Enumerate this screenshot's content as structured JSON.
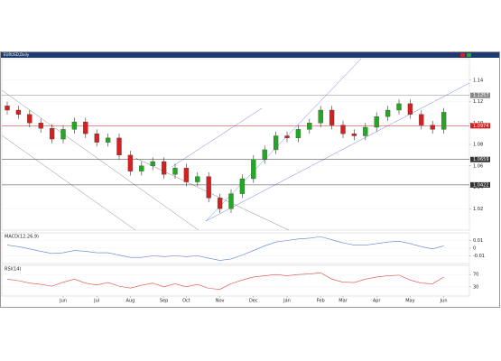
{
  "chart_data": {
    "type": "candlestick",
    "symbol": "EURUSD,Daily",
    "categories": [
      null,
      null,
      null,
      null,
      null,
      "Jun",
      null,
      null,
      "Jul",
      null,
      null,
      "Aug",
      null,
      null,
      "Sep",
      null,
      "Oct",
      null,
      null,
      "Nov",
      null,
      null,
      "Dec",
      null,
      null,
      "Jan",
      null,
      null,
      "Feb",
      null,
      "Mar",
      null,
      null,
      "Apr",
      null,
      null,
      "May",
      null,
      null,
      "Jun"
    ],
    "open": [
      1.116,
      1.112,
      1.108,
      1.1,
      1.095,
      1.085,
      1.094,
      1.101,
      1.09,
      1.082,
      1.086,
      1.07,
      1.055,
      1.06,
      1.064,
      1.052,
      1.058,
      1.045,
      1.05,
      1.03,
      1.02,
      1.034,
      1.048,
      1.066,
      1.075,
      1.088,
      1.086,
      1.094,
      1.1,
      1.112,
      1.098,
      1.09,
      1.088,
      1.096,
      1.106,
      1.112,
      1.118,
      1.108,
      1.098,
      1.094
    ],
    "high": [
      1.12,
      1.116,
      1.112,
      1.104,
      1.099,
      1.098,
      1.105,
      1.105,
      1.094,
      1.09,
      1.09,
      1.074,
      1.064,
      1.068,
      1.068,
      1.062,
      1.062,
      1.054,
      1.054,
      1.034,
      1.038,
      1.052,
      1.07,
      1.079,
      1.092,
      1.092,
      1.098,
      1.104,
      1.116,
      1.116,
      1.102,
      1.094,
      1.1,
      1.11,
      1.116,
      1.122,
      1.122,
      1.112,
      1.102,
      1.114
    ],
    "low": [
      1.108,
      1.104,
      1.096,
      1.091,
      1.081,
      1.081,
      1.09,
      1.086,
      1.078,
      1.078,
      1.066,
      1.051,
      1.051,
      1.056,
      1.048,
      1.048,
      1.041,
      1.041,
      1.026,
      1.016,
      1.016,
      1.03,
      1.044,
      1.062,
      1.071,
      1.082,
      1.082,
      1.09,
      1.096,
      1.094,
      1.086,
      1.084,
      1.084,
      1.092,
      1.102,
      1.108,
      1.104,
      1.094,
      1.09,
      1.09
    ],
    "close": [
      1.112,
      1.108,
      1.1,
      1.095,
      1.085,
      1.094,
      1.101,
      1.09,
      1.082,
      1.086,
      1.07,
      1.055,
      1.06,
      1.064,
      1.052,
      1.058,
      1.045,
      1.05,
      1.03,
      1.02,
      1.034,
      1.048,
      1.066,
      1.075,
      1.088,
      1.086,
      1.094,
      1.1,
      1.112,
      1.098,
      1.09,
      1.088,
      1.096,
      1.106,
      1.112,
      1.118,
      1.108,
      1.098,
      1.094,
      1.11
    ],
    "up_color": "#22a822",
    "down_color": "#d42020",
    "ylim": [
      1.0,
      1.16
    ],
    "yticks": [
      1.02,
      1.04,
      1.06,
      1.08,
      {
        "value": 1.1,
        "label": "1.10"
      },
      1.12,
      1.14
    ],
    "levels": [
      {
        "value": 1.1257,
        "color": "#888888"
      },
      {
        "value": 1.0974,
        "color": "#d42020"
      },
      {
        "value": 1.0659,
        "color": "#333333"
      },
      {
        "value": 1.0422,
        "color": "#333333"
      }
    ],
    "indicators": [
      {
        "name": "MACD(12,26,9)",
        "color": "#5a7fd6",
        "ylim": [
          -0.02,
          0.02
        ],
        "yticks": [
          -0.01,
          0,
          0.01
        ],
        "values": [
          0.004,
          0.002,
          -0.001,
          -0.004,
          -0.007,
          -0.006,
          -0.003,
          -0.004,
          -0.006,
          -0.006,
          -0.009,
          -0.012,
          -0.012,
          -0.01,
          -0.011,
          -0.01,
          -0.011,
          -0.01,
          -0.013,
          -0.016,
          -0.014,
          -0.009,
          -0.003,
          0.003,
          0.008,
          0.01,
          0.012,
          0.013,
          0.015,
          0.011,
          0.007,
          0.004,
          0.004,
          0.006,
          0.008,
          0.009,
          0.006,
          0.002,
          -0.001,
          0.003
        ]
      },
      {
        "name": "RSI(14)",
        "color": "#e04848",
        "ylim": [
          0,
          100
        ],
        "yticks": [
          30,
          70
        ],
        "values": [
          55,
          50,
          42,
          38,
          32,
          45,
          55,
          42,
          36,
          44,
          32,
          26,
          35,
          42,
          30,
          40,
          30,
          38,
          25,
          22,
          40,
          52,
          62,
          66,
          70,
          66,
          70,
          72,
          76,
          55,
          45,
          44,
          55,
          62,
          66,
          68,
          52,
          42,
          40,
          62
        ]
      }
    ]
  }
}
